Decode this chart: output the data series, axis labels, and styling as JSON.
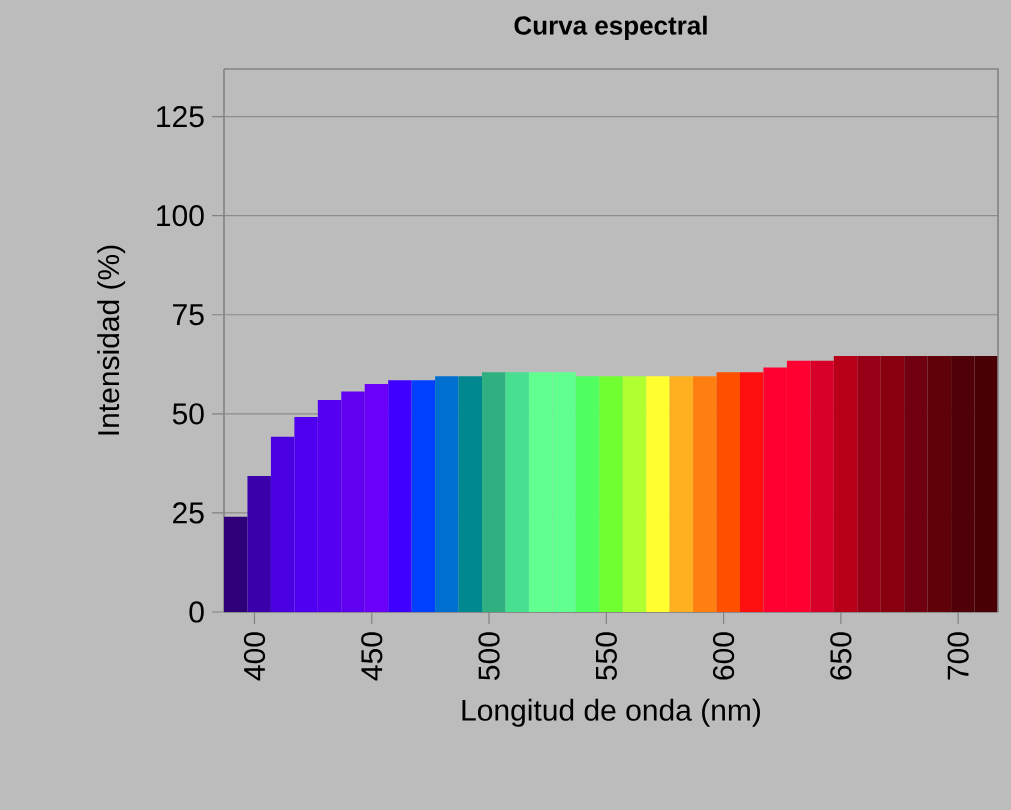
{
  "chart_data": {
    "type": "histogram",
    "title": "Curva espectral",
    "xlabel": "Longitud de onda (nm)",
    "ylabel": "Intensidad (%)",
    "bins": [
      387,
      397,
      407,
      417,
      427,
      437,
      447,
      457,
      467,
      477,
      487,
      497,
      507,
      517,
      527,
      537,
      547,
      557,
      567,
      577,
      587,
      597,
      607,
      617,
      627,
      637,
      647,
      657,
      667,
      677,
      687,
      697,
      707,
      717
    ],
    "values": [
      24,
      34.3,
      44.2,
      49.2,
      53.5,
      55.6,
      57.5,
      58.5,
      58.5,
      59.5,
      59.5,
      60.5,
      60.5,
      60.5,
      60.5,
      59.5,
      59.5,
      59.5,
      59.5,
      59.5,
      59.5,
      60.5,
      60.5,
      61.7,
      63.4,
      63.4,
      64.6,
      64.6,
      64.6,
      64.6,
      64.6,
      64.6,
      64.6
    ],
    "colors": [
      "#2e0078",
      "#3a00aa",
      "#4a00e0",
      "#5000f0",
      "#5500f0",
      "#6000f0",
      "#6a00f8",
      "#4000ff",
      "#0040ff",
      "#0070d0",
      "#008890",
      "#30b080",
      "#48e090",
      "#60ff90",
      "#60ff90",
      "#50ff60",
      "#70ff30",
      "#b0ff30",
      "#ffff30",
      "#ffb020",
      "#ff8010",
      "#ff5000",
      "#ff1010",
      "#ff0030",
      "#ff0030",
      "#d80028",
      "#b80018",
      "#980018",
      "#880010",
      "#700010",
      "#600008",
      "#500008",
      "#480004"
    ],
    "xlim": [
      387,
      717
    ],
    "xticks": [
      400,
      450,
      500,
      550,
      600,
      650,
      700
    ],
    "ylim": [
      0,
      137
    ],
    "yticks": [
      0,
      25,
      50,
      75,
      100,
      125
    ],
    "grid": "y"
  }
}
